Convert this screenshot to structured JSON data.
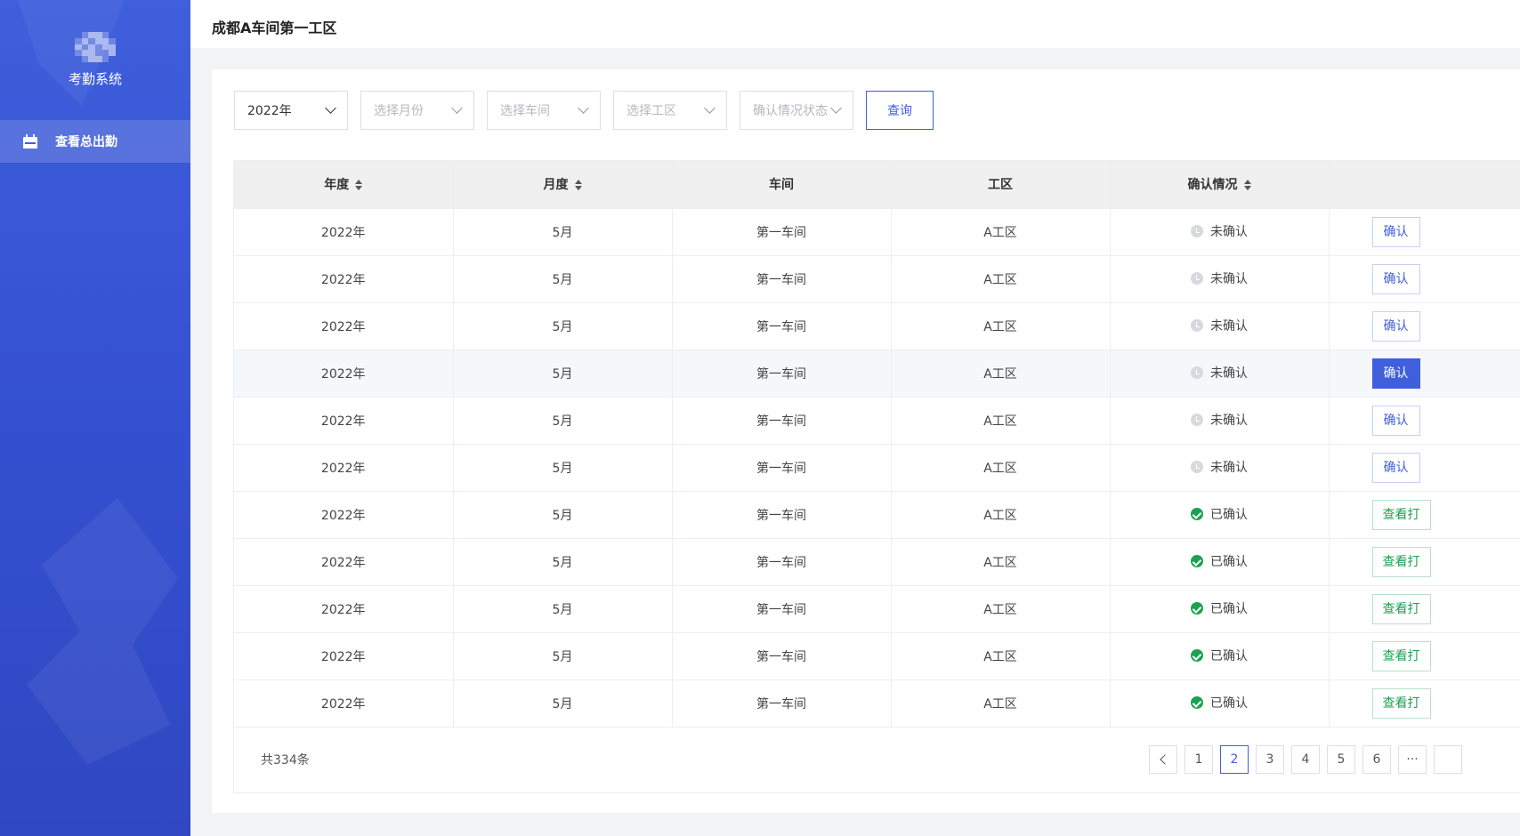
{
  "sidebar": {
    "system_title": "考勤系统",
    "menu": [
      {
        "label": "查看总出勤",
        "icon": "calendar-icon"
      }
    ]
  },
  "header": {
    "title": "成都A车间第一工区"
  },
  "filters": {
    "year": "2022年",
    "month_placeholder": "选择月份",
    "workshop_placeholder": "选择车间",
    "area_placeholder": "选择工区",
    "status_placeholder": "确认情况状态",
    "query_label": "查询"
  },
  "table": {
    "headers": [
      "年度",
      "月度",
      "车间",
      "工区",
      "确认情况",
      ""
    ],
    "rows": [
      {
        "year": "2022年",
        "month": "5月",
        "workshop": "第一车间",
        "area": "A工区",
        "status": "未确认",
        "action": "确认"
      },
      {
        "year": "2022年",
        "month": "5月",
        "workshop": "第一车间",
        "area": "A工区",
        "status": "未确认",
        "action": "确认"
      },
      {
        "year": "2022年",
        "month": "5月",
        "workshop": "第一车间",
        "area": "A工区",
        "status": "未确认",
        "action": "确认"
      },
      {
        "year": "2022年",
        "month": "5月",
        "workshop": "第一车间",
        "area": "A工区",
        "status": "未确认",
        "action": "确认"
      },
      {
        "year": "2022年",
        "month": "5月",
        "workshop": "第一车间",
        "area": "A工区",
        "status": "未确认",
        "action": "确认"
      },
      {
        "year": "2022年",
        "month": "5月",
        "workshop": "第一车间",
        "area": "A工区",
        "status": "未确认",
        "action": "确认"
      },
      {
        "year": "2022年",
        "month": "5月",
        "workshop": "第一车间",
        "area": "A工区",
        "status": "已确认",
        "action": "查看打"
      },
      {
        "year": "2022年",
        "month": "5月",
        "workshop": "第一车间",
        "area": "A工区",
        "status": "已确认",
        "action": "查看打"
      },
      {
        "year": "2022年",
        "month": "5月",
        "workshop": "第一车间",
        "area": "A工区",
        "status": "已确认",
        "action": "查看打"
      },
      {
        "year": "2022年",
        "month": "5月",
        "workshop": "第一车间",
        "area": "A工区",
        "status": "已确认",
        "action": "查看打"
      },
      {
        "year": "2022年",
        "month": "5月",
        "workshop": "第一车间",
        "area": "A工区",
        "status": "已确认",
        "action": "查看打"
      }
    ]
  },
  "pagination": {
    "total_text": "共334条",
    "pages": [
      "1",
      "2",
      "3",
      "4",
      "5",
      "6",
      "···"
    ],
    "current": "2"
  },
  "colors": {
    "primary": "#3f5fdc",
    "success": "#1aa252",
    "pending": "#d7d9de"
  }
}
